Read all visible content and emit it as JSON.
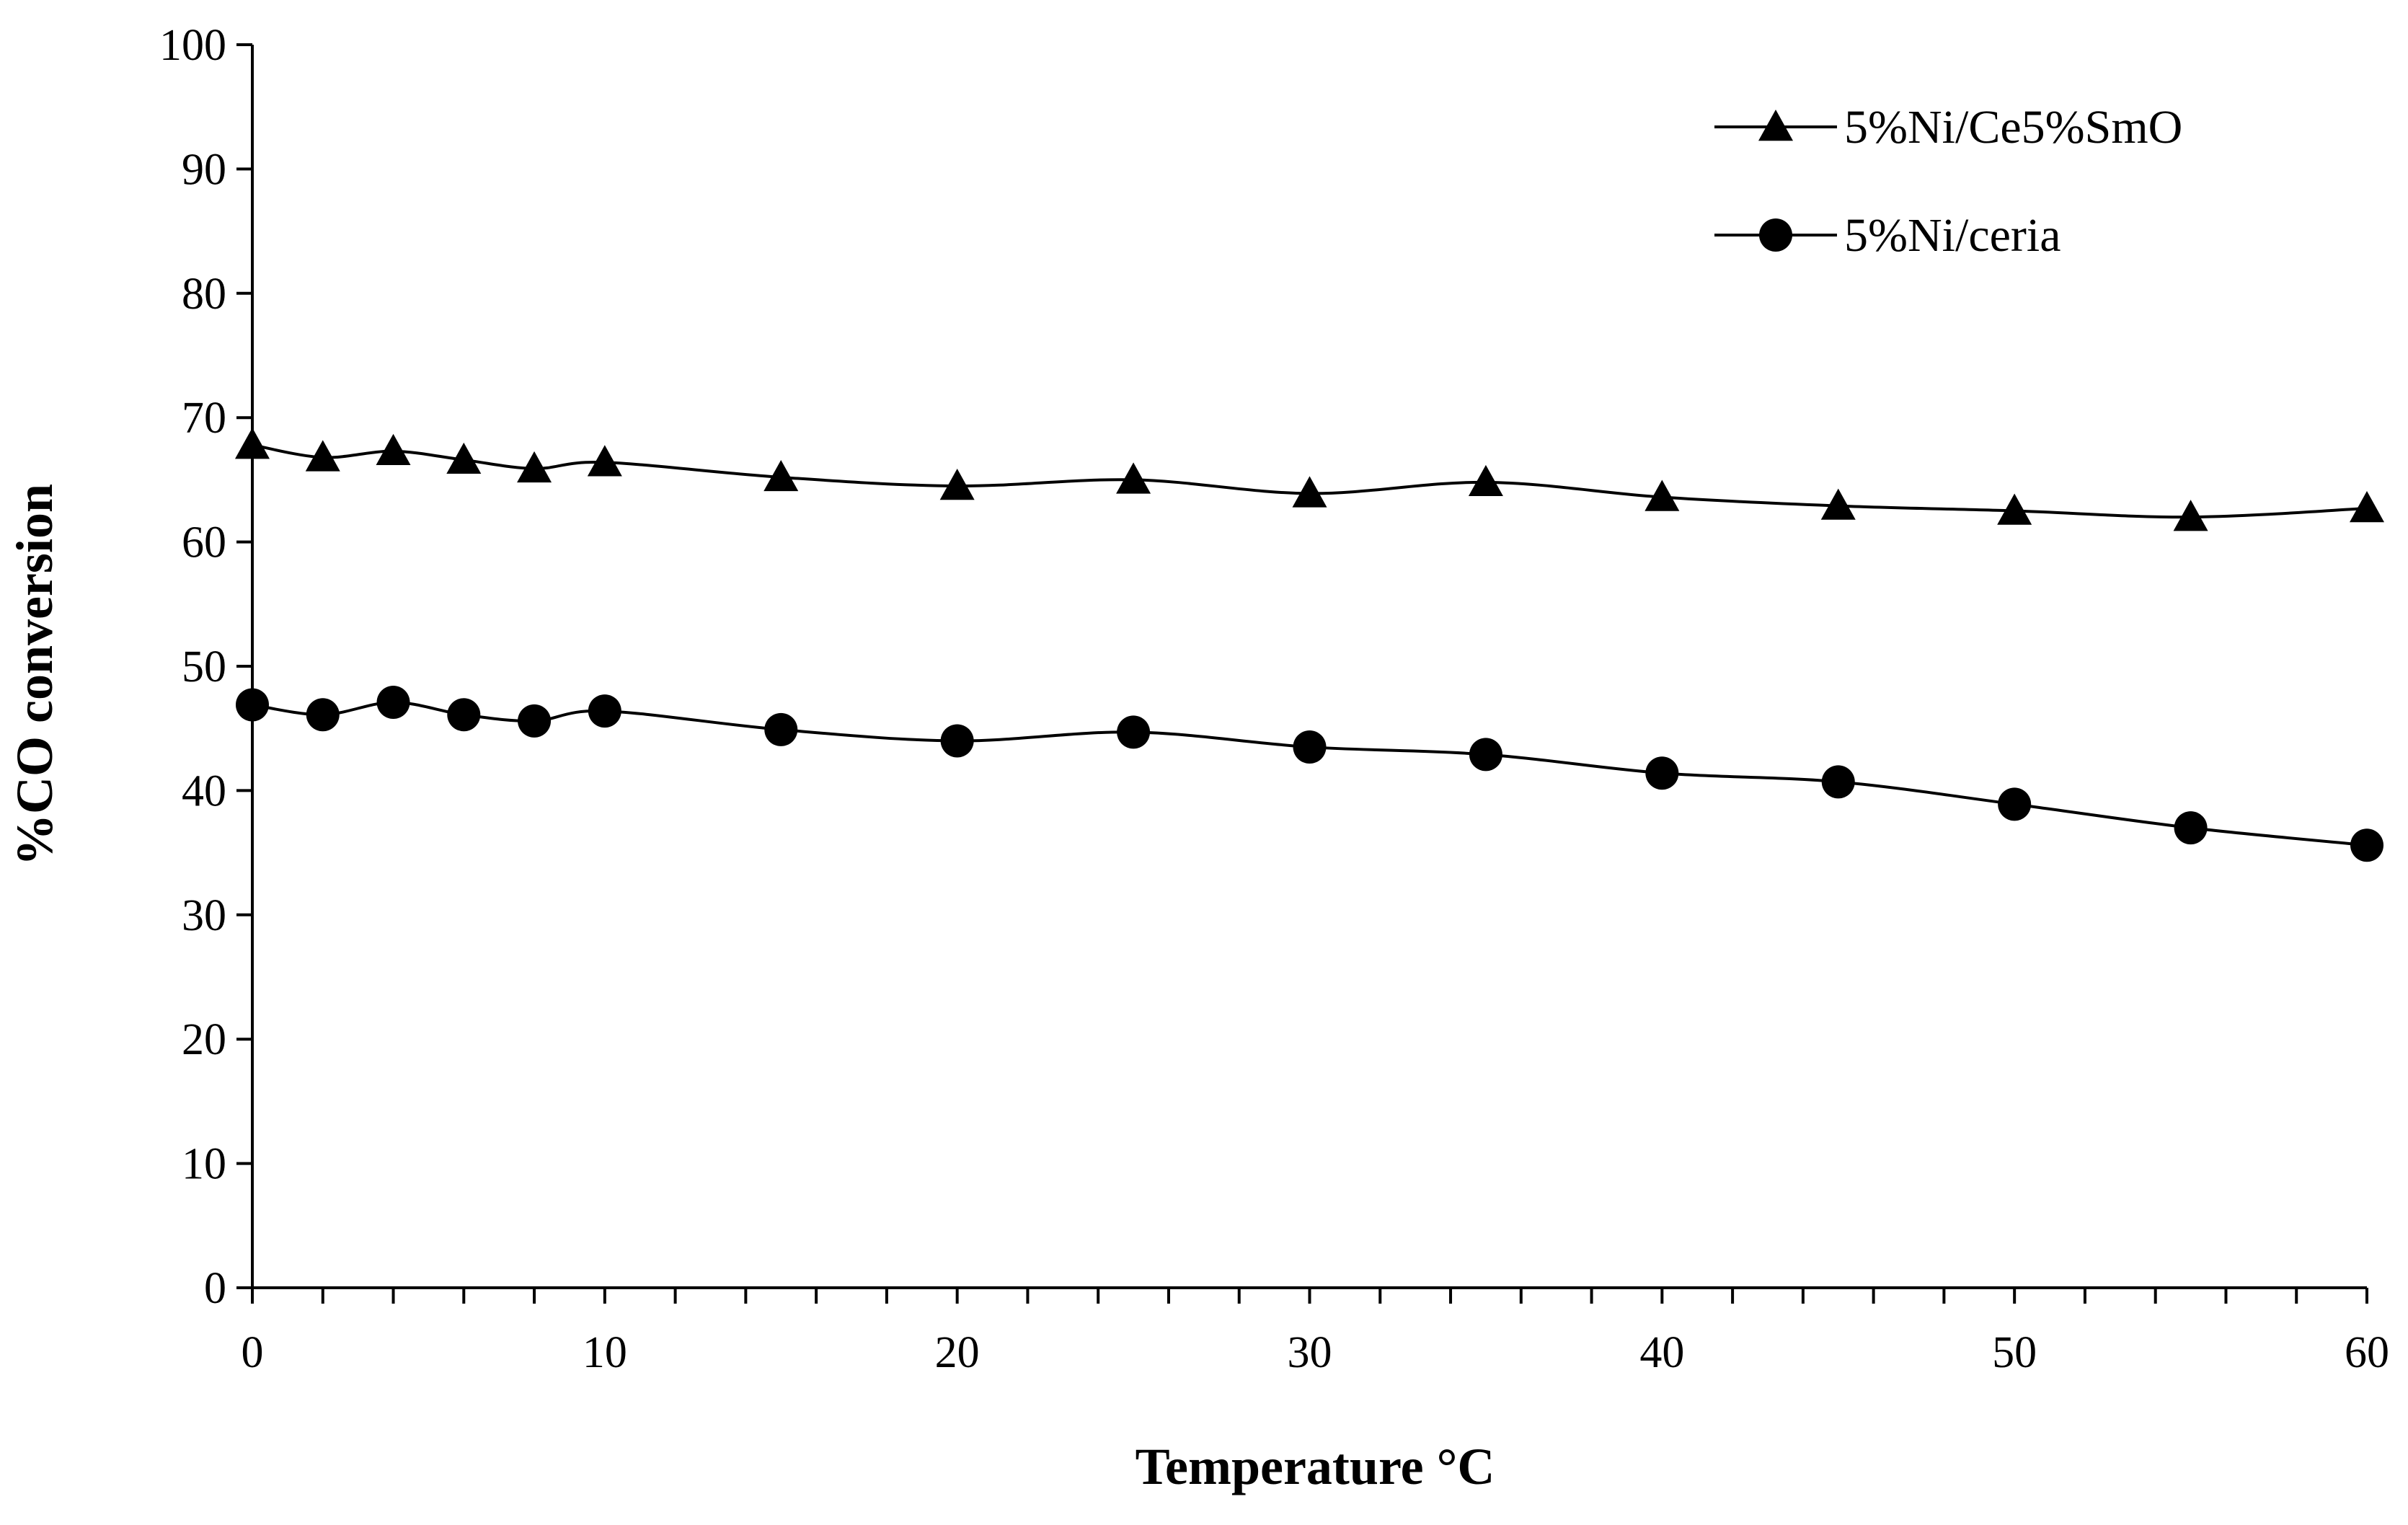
{
  "chart_data": {
    "type": "line",
    "title": "",
    "xlabel": "Temperature °C",
    "ylabel": "%CO conversion",
    "xlim": [
      0,
      60
    ],
    "ylim": [
      0,
      100
    ],
    "xticks": [
      0,
      10,
      20,
      30,
      40,
      50,
      60
    ],
    "yticks": [
      0,
      10,
      20,
      30,
      40,
      50,
      60,
      70,
      80,
      90,
      100
    ],
    "grid": false,
    "legend_position": "top-right",
    "x": [
      0,
      2,
      4,
      6,
      8,
      10,
      15,
      20,
      25,
      30,
      35,
      40,
      45,
      50,
      55,
      60
    ],
    "series": [
      {
        "name": "5%Ni/Ce5%SmO",
        "marker": "triangle",
        "color": "#000000",
        "values": [
          67.8,
          66.8,
          67.3,
          66.6,
          65.9,
          66.4,
          65.2,
          64.5,
          65.0,
          63.9,
          64.8,
          63.6,
          62.9,
          62.5,
          62.0,
          62.7
        ]
      },
      {
        "name": "5%Ni/ceria",
        "marker": "circle",
        "color": "#000000",
        "values": [
          46.9,
          46.1,
          47.1,
          46.1,
          45.6,
          46.4,
          44.9,
          44.0,
          44.7,
          43.5,
          42.9,
          41.4,
          40.7,
          38.9,
          37.0,
          35.6
        ]
      }
    ]
  }
}
